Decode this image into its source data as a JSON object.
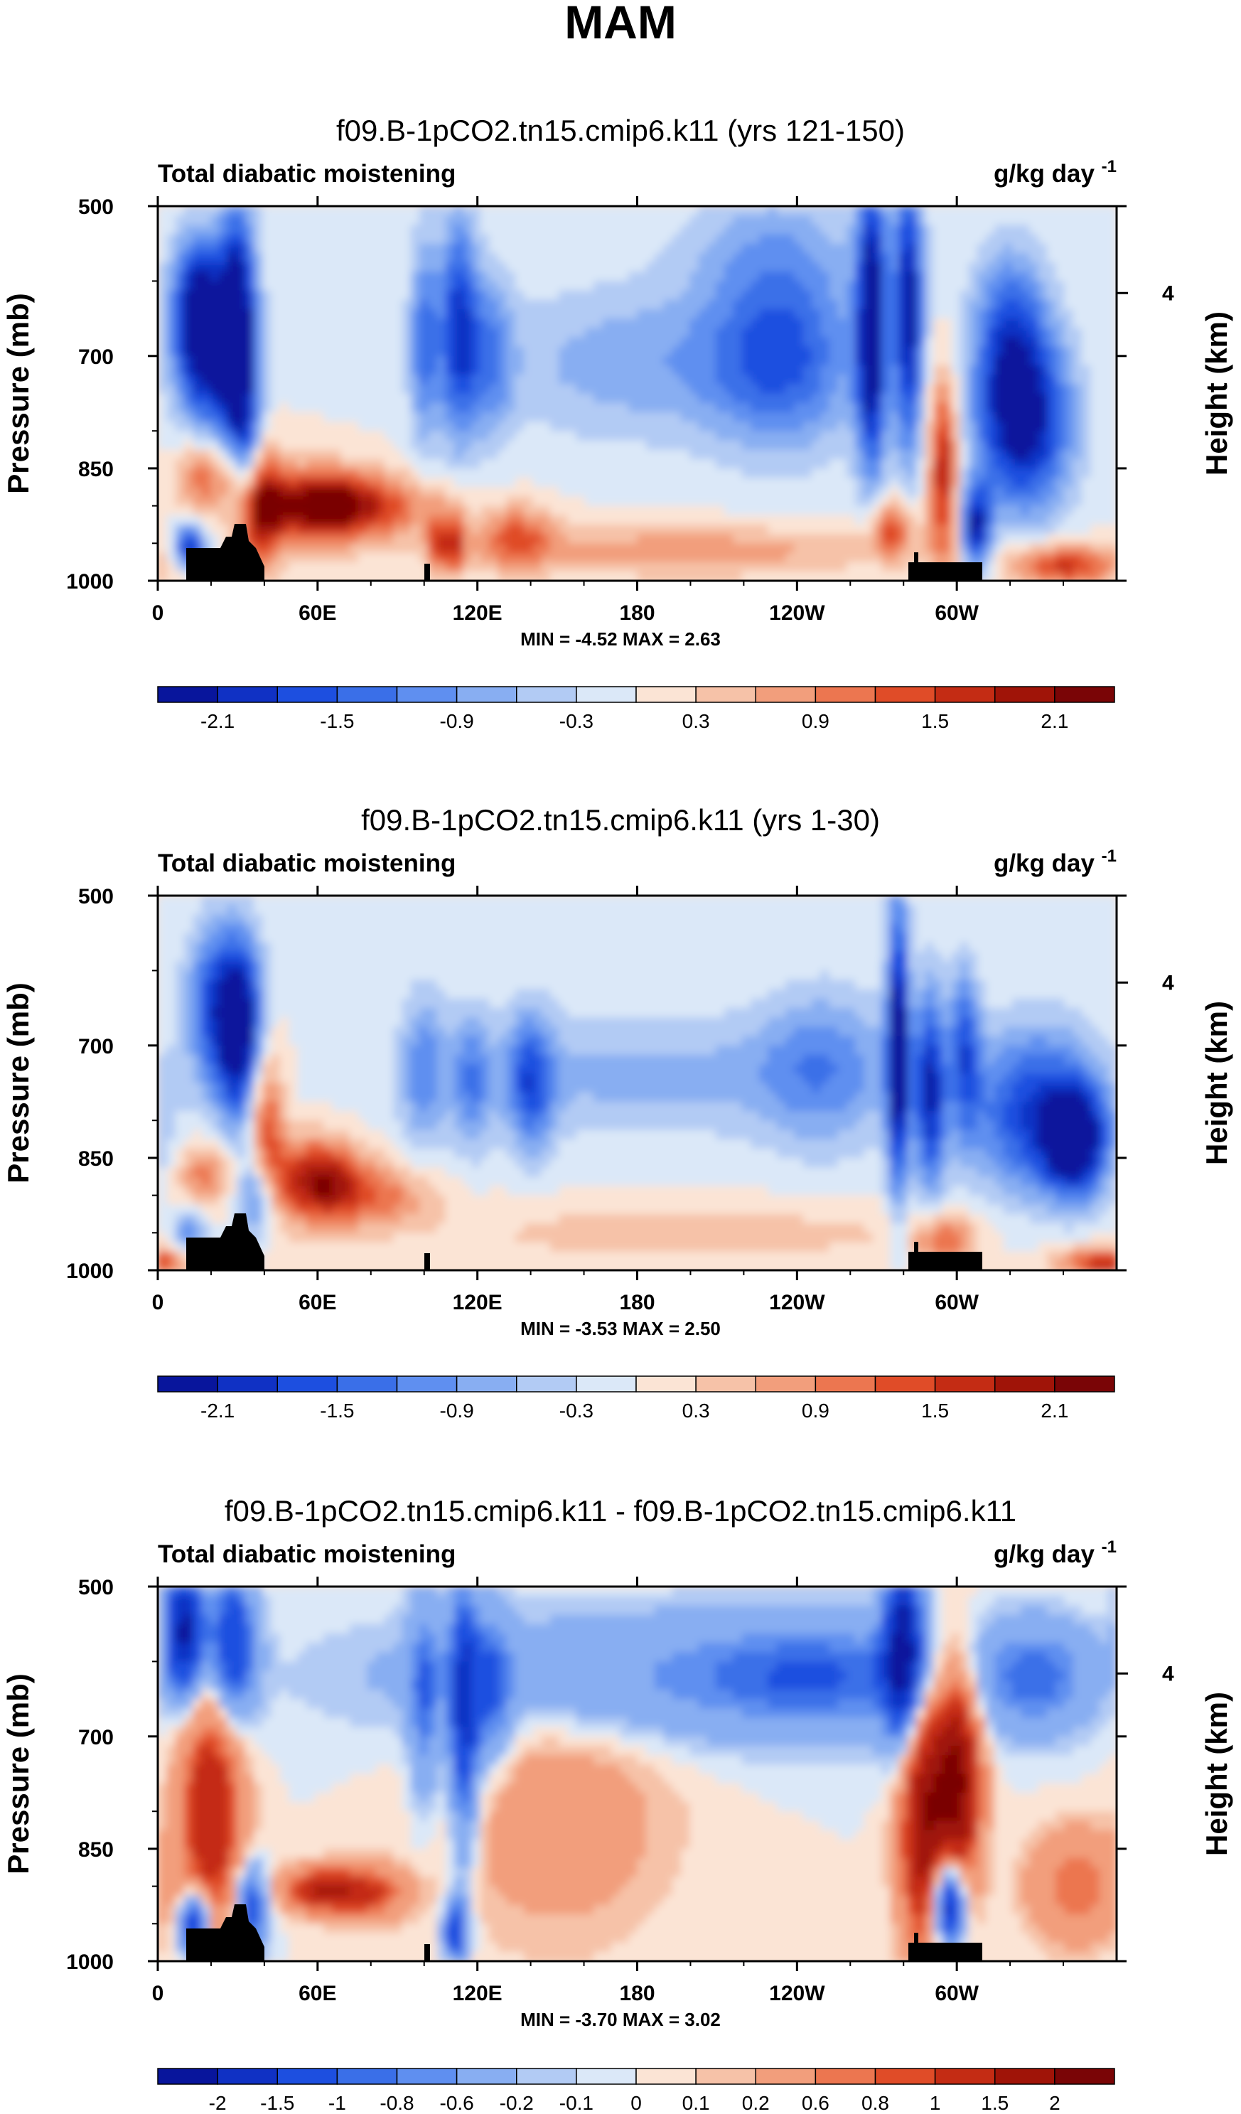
{
  "figure": {
    "title": "MAM"
  },
  "chart_data": [
    {
      "type": "heatmap",
      "title": "f09.B-1pCO2.tn15.cmip6.k11 (yrs 121-150)",
      "left_label": "Total diabatic moistening",
      "units_base": "g/kg day",
      "units_exp": "-1",
      "xlabel": "",
      "ylabel": "Pressure (mb)",
      "ylabel_right": "Height (km)",
      "xticks": [
        "0",
        "60E",
        "120E",
        "180",
        "120W",
        "60W"
      ],
      "yticks": [
        "500",
        "700",
        "850",
        "1000"
      ],
      "right_ticks": [
        "4"
      ],
      "stats": {
        "min_label": "MIN =",
        "min": "-4.52",
        "max_label": "MAX =",
        "max": "2.63"
      },
      "colorbar_labels": [
        "-2.1",
        "-1.5",
        "-0.9",
        "-0.3",
        "0.3",
        "0.9",
        "1.5",
        "2.1"
      ],
      "colorbar_label_slots": [
        1,
        3,
        5,
        7,
        9,
        11,
        13,
        15
      ],
      "colorbar_levels": [
        -2.4,
        -2.1,
        -1.8,
        -1.5,
        -1.2,
        -0.9,
        -0.6,
        -0.3,
        0,
        0.3,
        0.6,
        0.9,
        1.2,
        1.5,
        1.8,
        2.1,
        2.4
      ],
      "ylim": [
        1000,
        500
      ],
      "xlim_deg_east": [
        0,
        360
      ]
    },
    {
      "type": "heatmap",
      "title": "f09.B-1pCO2.tn15.cmip6.k11 (yrs 1-30)",
      "left_label": "Total diabatic moistening",
      "units_base": "g/kg day",
      "units_exp": "-1",
      "xlabel": "",
      "ylabel": "Pressure (mb)",
      "ylabel_right": "Height (km)",
      "xticks": [
        "0",
        "60E",
        "120E",
        "180",
        "120W",
        "60W"
      ],
      "yticks": [
        "500",
        "700",
        "850",
        "1000"
      ],
      "right_ticks": [
        "4"
      ],
      "stats": {
        "min_label": "MIN =",
        "min": "-3.53",
        "max_label": "MAX =",
        "max": "2.50"
      },
      "colorbar_labels": [
        "-2.1",
        "-1.5",
        "-0.9",
        "-0.3",
        "0.3",
        "0.9",
        "1.5",
        "2.1"
      ],
      "colorbar_label_slots": [
        1,
        3,
        5,
        7,
        9,
        11,
        13,
        15
      ],
      "colorbar_levels": [
        -2.4,
        -2.1,
        -1.8,
        -1.5,
        -1.2,
        -0.9,
        -0.6,
        -0.3,
        0,
        0.3,
        0.6,
        0.9,
        1.2,
        1.5,
        1.8,
        2.1,
        2.4
      ],
      "ylim": [
        1000,
        500
      ],
      "xlim_deg_east": [
        0,
        360
      ]
    },
    {
      "type": "heatmap",
      "title": "f09.B-1pCO2.tn15.cmip6.k11 - f09.B-1pCO2.tn15.cmip6.k11",
      "left_label": "Total diabatic moistening",
      "units_base": "g/kg day",
      "units_exp": "-1",
      "xlabel": "",
      "ylabel": "Pressure (mb)",
      "ylabel_right": "Height (km)",
      "xticks": [
        "0",
        "60E",
        "120E",
        "180",
        "120W",
        "60W"
      ],
      "yticks": [
        "500",
        "700",
        "850",
        "1000"
      ],
      "right_ticks": [
        "4"
      ],
      "stats": {
        "min_label": "MIN =",
        "min": "-3.70",
        "max_label": "MAX =",
        "max": "3.02"
      },
      "colorbar_labels": [
        "-2",
        "-1.5",
        "-1",
        "-0.8",
        "-0.6",
        "-0.2",
        "-0.1",
        "0",
        "0.1",
        "0.2",
        "0.6",
        "0.8",
        "1",
        "1.5",
        "2"
      ],
      "colorbar_label_slots": [
        1,
        2,
        3,
        4,
        5,
        6,
        7,
        8,
        9,
        10,
        11,
        12,
        13,
        14,
        15
      ],
      "colorbar_levels": [
        -2.5,
        -2,
        -1.5,
        -1,
        -0.8,
        -0.6,
        -0.2,
        -0.1,
        0,
        0.1,
        0.2,
        0.6,
        0.8,
        1,
        1.5,
        2,
        2.5
      ],
      "ylim": [
        1000,
        500
      ],
      "xlim_deg_east": [
        0,
        360
      ]
    }
  ],
  "palette": [
    "#08159c",
    "#1031c4",
    "#1d4fe0",
    "#3a6fe8",
    "#5f8ff0",
    "#88aef2",
    "#b2cbf4",
    "#dbe8f8",
    "#fbe4d5",
    "#f6c2a8",
    "#f29e7c",
    "#ec7650",
    "#e04c28",
    "#c42c14",
    "#a01408",
    "#7a0506"
  ]
}
